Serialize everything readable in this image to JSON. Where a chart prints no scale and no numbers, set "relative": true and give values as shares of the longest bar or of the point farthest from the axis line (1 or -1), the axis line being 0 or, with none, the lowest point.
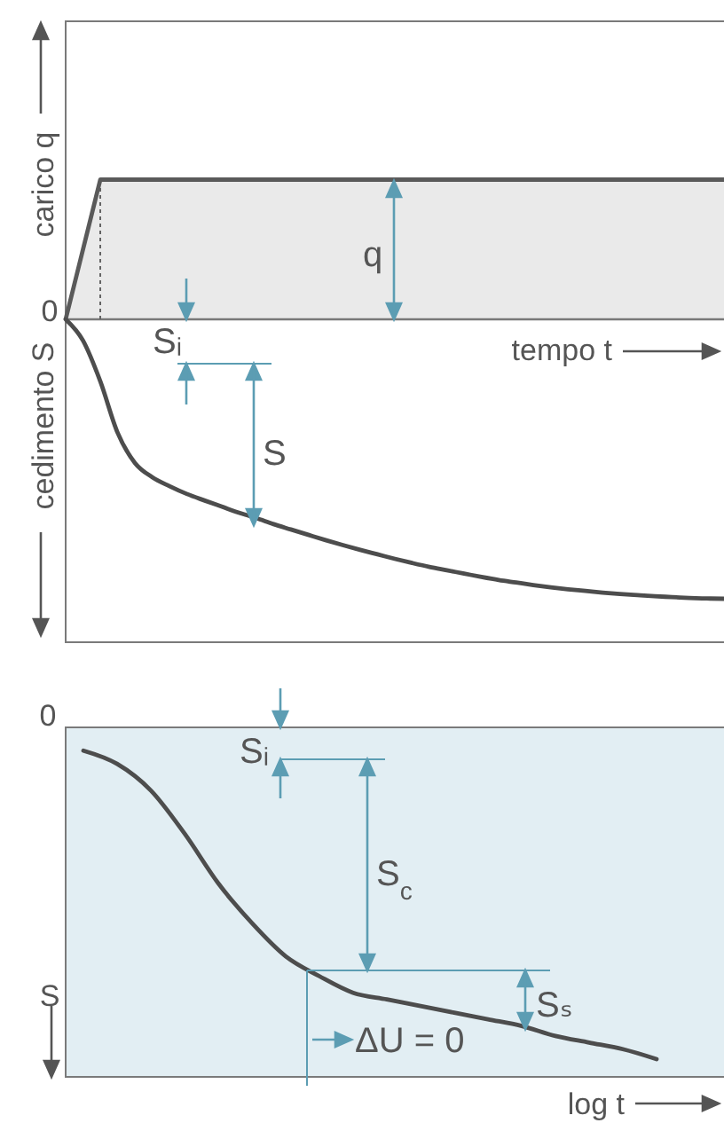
{
  "chart_data": [
    {
      "type": "line",
      "relative": true,
      "categories": [
        null,
        null,
        null,
        null,
        null,
        null,
        null,
        null,
        null,
        null,
        null,
        null,
        null,
        null,
        null,
        null,
        null,
        null,
        null,
        null,
        null,
        null,
        null,
        null,
        null,
        null,
        null,
        null,
        null,
        null,
        null,
        null,
        null,
        null,
        null,
        null,
        null,
        null,
        null
      ],
      "ylabel": "carico q",
      "xlabel": "tempo t",
      "series": [
        {
          "type": "area",
          "color": "#5a5a5a",
          "values": [
            0,
            0.25,
            0.5,
            0.5,
            0.5,
            0.5,
            0.5,
            0.5,
            0.5,
            0.5,
            0.5,
            0.5,
            0.5,
            0.5,
            0.5,
            0.5,
            0.5,
            0.5,
            0.5,
            0.5,
            0.5,
            0.5,
            0.5,
            0.5,
            0.5,
            0.5,
            0.5,
            0.5,
            0.5,
            0.5,
            0.5,
            0.5,
            0.5,
            0.5,
            0.5,
            0.5,
            0.5,
            0.5,
            0.5
          ]
        },
        {
          "type": "line",
          "color": "#4d4d4d",
          "values": [
            0,
            -0.076,
            -0.222,
            -0.406,
            -0.514,
            -0.565,
            -0.597,
            -0.625,
            -0.648,
            -0.67,
            -0.692,
            -0.711,
            -0.733,
            -0.752,
            -0.771,
            -0.79,
            -0.808,
            -0.825,
            -0.841,
            -0.857,
            -0.872,
            -0.886,
            -0.898,
            -0.91,
            -0.922,
            -0.933,
            -0.942,
            -0.951,
            -0.959,
            -0.966,
            -0.972,
            -0.978,
            -0.983,
            -0.987,
            -0.991,
            -0.994,
            -0.997,
            -0.999,
            -1
          ]
        }
      ],
      "annotations": [
        "0",
        "cedimento S",
        "q",
        "Sᵢ",
        "S"
      ]
    },
    {
      "type": "line",
      "relative": true,
      "categories": [
        null,
        null,
        null,
        null,
        null,
        null,
        null,
        null,
        null,
        null,
        null,
        null,
        null,
        null,
        null,
        null,
        null,
        null
      ],
      "ylabel": "S",
      "xlabel": "log t",
      "series": [
        {
          "color": "#4d4d4d",
          "values": [
            -0.07,
            -0.11,
            -0.19,
            -0.32,
            -0.47,
            -0.59,
            -0.69,
            -0.75,
            -0.8,
            -0.82,
            -0.84,
            -0.86,
            -0.88,
            -0.9,
            -0.93,
            -0.95,
            -0.97,
            -1
          ]
        }
      ],
      "annotations": [
        "0",
        "Sᵢ",
        "S$_{c}$",
        "Sₛ",
        "ΔU = 0"
      ]
    }
  ]
}
